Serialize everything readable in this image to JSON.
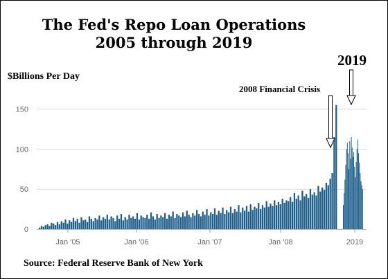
{
  "chart_data": {
    "type": "bar",
    "title": "The Fed's Repo Loan Operations",
    "subtitle": "2005 through 2019",
    "ylabel": "$Billions Per Day",
    "source": "Source: Federal Reserve Bank of New York",
    "ylim": [
      0,
      160
    ],
    "yticks": [
      0,
      50,
      100,
      150
    ],
    "xtick_labels": [
      "Jan '05",
      "Jan '06",
      "Jan '07",
      "Jan '08",
      "2019"
    ],
    "grid": true,
    "annotations": [
      {
        "text": "2008 Financial Crisis",
        "x": "late 2008",
        "y": 160
      },
      {
        "text": "2019",
        "x": "2019",
        "y": 115
      }
    ],
    "colors": {
      "bars": "#1f5f8b",
      "grid": "#d9d9d9"
    },
    "series": [
      {
        "segment": "Jun 2004 – Dec 2008",
        "values": [
          2,
          4,
          3,
          5,
          6,
          4,
          8,
          7,
          5,
          9,
          6,
          10,
          8,
          12,
          7,
          11,
          9,
          14,
          10,
          13,
          8,
          15,
          11,
          12,
          9,
          16,
          13,
          10,
          14,
          12,
          17,
          11,
          15,
          13,
          18,
          12,
          16,
          14,
          10,
          17,
          13,
          19,
          11,
          15,
          12,
          18,
          14,
          16,
          13,
          20,
          12,
          17,
          15,
          14,
          18,
          13,
          21,
          16,
          12,
          19,
          14,
          17,
          15,
          20,
          13,
          18,
          16,
          22,
          14,
          19,
          17,
          15,
          21,
          16,
          23,
          18,
          15,
          20,
          17,
          24,
          19,
          16,
          22,
          18,
          25,
          17,
          21,
          19,
          26,
          18,
          23,
          20,
          27,
          19,
          24,
          21,
          28,
          20,
          25,
          22,
          30,
          21,
          27,
          23,
          29,
          22,
          31,
          24,
          28,
          26,
          33,
          25,
          30,
          27,
          35,
          28,
          32,
          29,
          36,
          30,
          34,
          31,
          38,
          33,
          36,
          35,
          40,
          34,
          45,
          38,
          42,
          36,
          48,
          41,
          44,
          39,
          50,
          43,
          46,
          42,
          54,
          47,
          52,
          49,
          58,
          55,
          63,
          70,
          115,
          155
        ]
      },
      {
        "segment": "2019",
        "values": [
          30,
          45,
          62,
          80,
          100,
          108,
          95,
          75,
          110,
          88,
          115,
          102,
          90,
          96,
          78,
          65,
          84,
          100,
          112,
          95,
          83,
          70,
          60,
          55,
          50
        ]
      }
    ]
  }
}
